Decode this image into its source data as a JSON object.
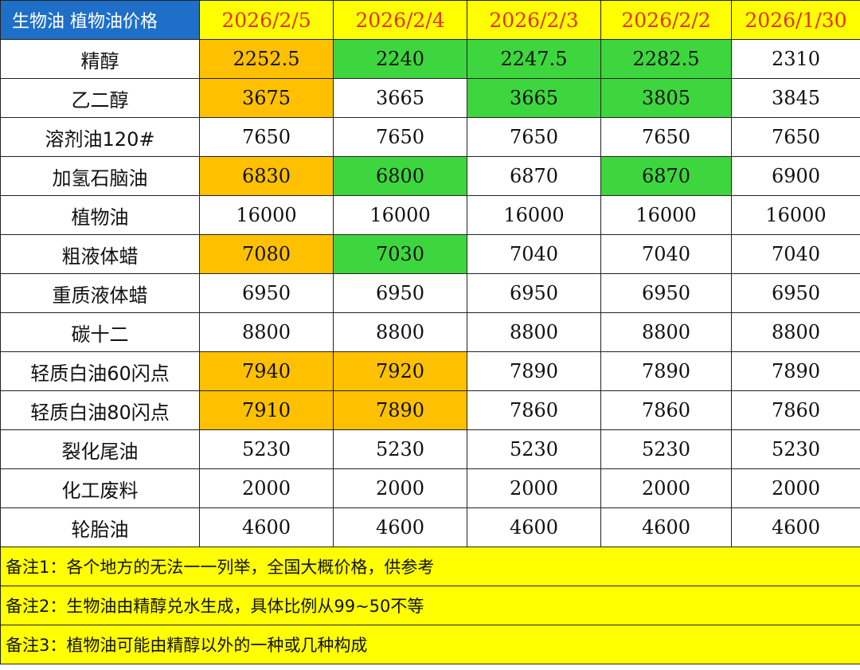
{
  "title": "生物油 植物油价格",
  "dates": [
    "2026/2/5",
    "2026/2/4",
    "2026/2/3",
    "2026/2/2",
    "2026/1/30"
  ],
  "colors": {
    "header_bg": "#ffff00",
    "header_text": "#e1311f",
    "title_bg": "#1f6fc8",
    "up": "#ffc000",
    "down": "#3ed63e"
  },
  "rows": [
    {
      "name": "精醇",
      "values": [
        "2252.5",
        "2240",
        "2247.5",
        "2282.5",
        "2310"
      ],
      "marks": [
        "up",
        "down",
        "down",
        "down",
        ""
      ]
    },
    {
      "name": "乙二醇",
      "values": [
        "3675",
        "3665",
        "3665",
        "3805",
        "3845"
      ],
      "marks": [
        "up",
        "",
        "down",
        "down",
        ""
      ]
    },
    {
      "name": "溶剂油120#",
      "values": [
        "7650",
        "7650",
        "7650",
        "7650",
        "7650"
      ],
      "marks": [
        "",
        "",
        "",
        "",
        ""
      ]
    },
    {
      "name": "加氢石脑油",
      "values": [
        "6830",
        "6800",
        "6870",
        "6870",
        "6900"
      ],
      "marks": [
        "up",
        "down",
        "",
        "down",
        ""
      ]
    },
    {
      "name": "植物油",
      "values": [
        "16000",
        "16000",
        "16000",
        "16000",
        "16000"
      ],
      "marks": [
        "",
        "",
        "",
        "",
        ""
      ]
    },
    {
      "name": "粗液体蜡",
      "values": [
        "7080",
        "7030",
        "7040",
        "7040",
        "7040"
      ],
      "marks": [
        "up",
        "down",
        "",
        "",
        ""
      ]
    },
    {
      "name": "重质液体蜡",
      "values": [
        "6950",
        "6950",
        "6950",
        "6950",
        "6950"
      ],
      "marks": [
        "",
        "",
        "",
        "",
        ""
      ]
    },
    {
      "name": "碳十二",
      "values": [
        "8800",
        "8800",
        "8800",
        "8800",
        "8800"
      ],
      "marks": [
        "",
        "",
        "",
        "",
        ""
      ]
    },
    {
      "name": "轻质白油60闪点",
      "values": [
        "7940",
        "7920",
        "7890",
        "7890",
        "7890"
      ],
      "marks": [
        "up",
        "up",
        "",
        "",
        ""
      ]
    },
    {
      "name": "轻质白油80闪点",
      "values": [
        "7910",
        "7890",
        "7860",
        "7860",
        "7860"
      ],
      "marks": [
        "up",
        "up",
        "",
        "",
        ""
      ]
    },
    {
      "name": "裂化尾油",
      "values": [
        "5230",
        "5230",
        "5230",
        "5230",
        "5230"
      ],
      "marks": [
        "",
        "",
        "",
        "",
        ""
      ]
    },
    {
      "name": "化工废料",
      "values": [
        "2000",
        "2000",
        "2000",
        "2000",
        "2000"
      ],
      "marks": [
        "",
        "",
        "",
        "",
        ""
      ]
    },
    {
      "name": "轮胎油",
      "values": [
        "4600",
        "4600",
        "4600",
        "4600",
        "4600"
      ],
      "marks": [
        "",
        "",
        "",
        "",
        ""
      ]
    }
  ],
  "notes": [
    "备注1：各个地方的无法一一列举，全国大概价格，供参考",
    "备注2：生物油由精醇兑水生成，具体比例从99~50不等",
    "备注3：植物油可能由精醇以外的一种或几种构成"
  ]
}
